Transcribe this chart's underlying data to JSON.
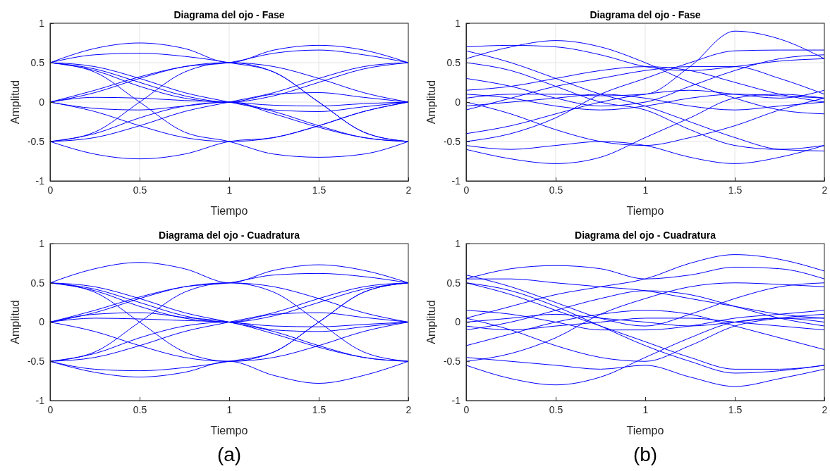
{
  "chart_data": [
    {
      "type": "line",
      "title": "Diagrama del ojo - Fase",
      "xlabel": "Tiempo",
      "ylabel": "Amplitud",
      "xlim": [
        0,
        2
      ],
      "ylim": [
        -1,
        1
      ],
      "xticks": [
        0,
        0.5,
        1,
        1.5,
        2
      ],
      "yticks": [
        -1,
        -0.5,
        0,
        0.5,
        1
      ],
      "grid": true,
      "series": [
        {
          "color": "#0000ff",
          "x": [
            0,
            0.25,
            0.5,
            0.75,
            1,
            1.25,
            1.5,
            1.75,
            2,
            0,
            0.25,
            0.5,
            0.75,
            1,
            1.25,
            1.5,
            1.75,
            2,
            0,
            0.25,
            0.5,
            0.75,
            1,
            1.25,
            1.5,
            1.75,
            2,
            0,
            0.25,
            0.5,
            0.75,
            1,
            1.25,
            1.5,
            1.75,
            2,
            0,
            0.25,
            0.5,
            0.75,
            1,
            1.25,
            1.5,
            1.75,
            2,
            0,
            0.25,
            0.5,
            0.75,
            1,
            1.25,
            1.5,
            1.75,
            2,
            0,
            0.25,
            0.5,
            0.75,
            1,
            1.25,
            1.5,
            1.75,
            2,
            0,
            0.25,
            0.5,
            0.75,
            1,
            1.25,
            1.5,
            1.75,
            2,
            0,
            0.25,
            0.5,
            0.75,
            1,
            1.25,
            1.5,
            1.75,
            2,
            0,
            0.25,
            0.5,
            0.75,
            1,
            1.25,
            1.5,
            1.75,
            2,
            0,
            0.25,
            0.5,
            0.75,
            1,
            1.25,
            1.5,
            1.75,
            2,
            0,
            0.25,
            0.5,
            0.75,
            1,
            1.25,
            1.5,
            1.75,
            2,
            0,
            0.25,
            0.5,
            0.75,
            1,
            1.25,
            1.5,
            1.75,
            2,
            0,
            0.25,
            0.5,
            0.75,
            1,
            1.25,
            1.5,
            1.75,
            2,
            0,
            0.25,
            0.5,
            0.75,
            1,
            1.25,
            1.5,
            1.75,
            2
          ],
          "values": [
            0.5,
            0.68,
            0.75,
            0.68,
            0.5,
            0.66,
            0.72,
            0.66,
            0.5,
            0.5,
            0.45,
            0.3,
            0.12,
            0,
            -0.12,
            -0.3,
            -0.45,
            -0.5,
            0,
            0.12,
            0.3,
            0.45,
            0.5,
            0.45,
            0.3,
            0.12,
            0,
            -0.5,
            -0.45,
            -0.3,
            -0.12,
            0,
            0.12,
            0.3,
            0.45,
            0.5,
            0,
            0.06,
            0.05,
            0.02,
            0,
            -0.04,
            -0.05,
            -0.02,
            0,
            -0.5,
            -0.66,
            -0.72,
            -0.66,
            -0.5,
            -0.45,
            -0.3,
            -0.12,
            0,
            0.5,
            0.38,
            0,
            -0.38,
            -0.5,
            -0.66,
            -0.7,
            -0.66,
            -0.5,
            -0.5,
            -0.38,
            0,
            0.38,
            0.5,
            0.38,
            0,
            -0.38,
            -0.5,
            0,
            -0.12,
            -0.3,
            -0.45,
            -0.5,
            -0.45,
            -0.3,
            -0.12,
            0,
            0.5,
            0.42,
            0.25,
            0.08,
            0,
            0.08,
            0.25,
            0.42,
            0.5,
            0,
            -0.08,
            -0.1,
            -0.05,
            0,
            -0.15,
            -0.32,
            -0.45,
            -0.5,
            0,
            0.15,
            0.32,
            0.45,
            0.5,
            0.62,
            0.66,
            0.6,
            0.5,
            0.5,
            0.4,
            0.2,
            0.05,
            0,
            0.1,
            0.12,
            0.06,
            0,
            -0.5,
            -0.4,
            -0.2,
            -0.05,
            0,
            -0.1,
            -0.12,
            -0.06,
            0,
            0.5,
            0.6,
            0.62,
            0.58,
            0.5,
            0.38,
            0,
            -0.38,
            -0.5
          ]
        }
      ]
    },
    {
      "type": "line",
      "title": "Diagrama del ojo - Fase",
      "xlabel": "Tiempo",
      "ylabel": "Amplitud",
      "xlim": [
        0,
        2
      ],
      "ylim": [
        -1,
        1
      ],
      "xticks": [
        0,
        0.5,
        1,
        1.5,
        2
      ],
      "yticks": [
        -1,
        -0.5,
        0,
        0.5,
        1
      ],
      "grid": true,
      "series": [
        {
          "color": "#0000ff",
          "x": [
            0,
            0.25,
            0.5,
            0.75,
            1,
            1.25,
            1.5,
            1.75,
            2,
            0,
            0.25,
            0.5,
            0.75,
            1,
            1.25,
            1.5,
            1.75,
            2,
            0,
            0.25,
            0.5,
            0.75,
            1,
            1.25,
            1.5,
            1.75,
            2,
            0,
            0.25,
            0.5,
            0.75,
            1,
            1.25,
            1.5,
            1.75,
            2,
            0,
            0.25,
            0.5,
            0.75,
            1,
            1.25,
            1.5,
            1.75,
            2,
            0,
            0.25,
            0.5,
            0.75,
            1,
            1.25,
            1.5,
            1.75,
            2,
            0,
            0.25,
            0.5,
            0.75,
            1,
            1.25,
            1.5,
            1.75,
            2,
            0,
            0.25,
            0.5,
            0.75,
            1,
            1.25,
            1.5,
            1.75,
            2,
            0,
            0.25,
            0.5,
            0.75,
            1,
            1.25,
            1.5,
            1.75,
            2,
            0,
            0.25,
            0.5,
            0.75,
            1,
            1.25,
            1.5,
            1.75,
            2,
            0,
            0.25,
            0.5,
            0.75,
            1,
            1.25,
            1.5,
            1.75,
            2,
            0,
            0.25,
            0.5,
            0.75,
            1,
            1.25,
            1.5,
            1.75,
            2,
            0,
            0.25,
            0.5,
            0.75,
            1,
            1.25,
            1.5,
            1.75,
            2,
            0,
            0.25,
            0.5,
            0.75,
            1,
            1.25,
            1.5,
            1.75,
            2,
            0,
            0.25,
            0.5,
            0.75,
            1,
            1.25,
            1.5,
            1.75,
            2
          ],
          "values": [
            0.7,
            0.72,
            0.7,
            0.6,
            0.45,
            0.4,
            0.45,
            0.52,
            0.55,
            0.55,
            0.7,
            0.78,
            0.7,
            0.5,
            0.25,
            0.05,
            -0.1,
            -0.15,
            0.05,
            0.1,
            0.1,
            0.08,
            0.1,
            0.45,
            0.9,
            0.8,
            0.55,
            -0.6,
            -0.72,
            -0.78,
            -0.7,
            -0.45,
            -0.2,
            0.05,
            0.1,
            0.05,
            0.1,
            0.05,
            -0.05,
            -0.1,
            -0.05,
            0.05,
            0.1,
            0.08,
            0.05,
            -0.05,
            0,
            0.05,
            0.1,
            0.05,
            -0.05,
            -0.1,
            -0.05,
            0,
            0.5,
            0.4,
            0.2,
            0,
            -0.1,
            -0.35,
            -0.55,
            -0.6,
            -0.55,
            -0.5,
            -0.4,
            -0.2,
            0.1,
            0.3,
            0.5,
            0.65,
            0.66,
            0.66,
            0.65,
            0.5,
            0.3,
            0.1,
            -0.05,
            -0.25,
            -0.45,
            -0.6,
            -0.62,
            -0.4,
            -0.3,
            -0.15,
            0,
            0.1,
            0.15,
            0.1,
            0.05,
            0.15,
            0.15,
            0.2,
            0.3,
            0.4,
            0.45,
            0.4,
            0.25,
            0.1,
            0,
            -0.55,
            -0.6,
            -0.55,
            -0.5,
            -0.55,
            -0.7,
            -0.78,
            -0.7,
            -0.55,
            0,
            -0.15,
            -0.35,
            -0.5,
            -0.55,
            -0.45,
            -0.3,
            -0.1,
            0.05,
            0.3,
            0.2,
            0.05,
            -0.05,
            0,
            0.2,
            0.4,
            0.55,
            0.6,
            -0.1,
            0.05,
            0.2,
            0.3,
            0.4,
            0.45,
            0.45,
            0.3,
            0.1
          ]
        }
      ]
    },
    {
      "type": "line",
      "title": "Diagrama del ojo - Cuadratura",
      "xlabel": "Tiempo",
      "ylabel": "Amplitud",
      "xlim": [
        0,
        2
      ],
      "ylim": [
        -1,
        1
      ],
      "xticks": [
        0,
        0.5,
        1,
        1.5,
        2
      ],
      "yticks": [
        -1,
        -0.5,
        0,
        0.5,
        1
      ],
      "annotations": [
        "(a)"
      ],
      "series": [
        {
          "color": "#0000ff",
          "x": [
            0,
            0.25,
            0.5,
            0.75,
            1,
            1.25,
            1.5,
            1.75,
            2,
            0,
            0.25,
            0.5,
            0.75,
            1,
            1.25,
            1.5,
            1.75,
            2,
            0,
            0.25,
            0.5,
            0.75,
            1,
            1.25,
            1.5,
            1.75,
            2,
            0,
            0.25,
            0.5,
            0.75,
            1,
            1.25,
            1.5,
            1.75,
            2,
            0,
            0.25,
            0.5,
            0.75,
            1,
            1.25,
            1.5,
            1.75,
            2,
            0,
            0.25,
            0.5,
            0.75,
            1,
            1.25,
            1.5,
            1.75,
            2,
            0,
            0.25,
            0.5,
            0.75,
            1,
            1.25,
            1.5,
            1.75,
            2,
            0,
            0.25,
            0.5,
            0.75,
            1,
            1.25,
            1.5,
            1.75,
            2,
            0,
            0.25,
            0.5,
            0.75,
            1,
            1.25,
            1.5,
            1.75,
            2,
            0,
            0.25,
            0.5,
            0.75,
            1,
            1.25,
            1.5,
            1.75,
            2,
            0,
            0.25,
            0.5,
            0.75,
            1,
            1.25,
            1.5,
            1.75,
            2,
            0,
            0.25,
            0.5,
            0.75,
            1,
            1.25,
            1.5,
            1.75,
            2,
            0,
            0.25,
            0.5,
            0.75,
            1,
            1.25,
            1.5,
            1.75,
            2,
            0,
            0.25,
            0.5,
            0.75,
            1,
            1.25,
            1.5,
            1.75,
            2,
            0,
            0.25,
            0.5,
            0.75,
            1,
            1.25,
            1.5,
            1.75,
            2
          ],
          "values": [
            0.5,
            0.68,
            0.76,
            0.68,
            0.5,
            0.66,
            0.73,
            0.66,
            0.5,
            0.5,
            0.45,
            0.3,
            0.12,
            0,
            -0.12,
            -0.3,
            -0.45,
            -0.5,
            0,
            0.12,
            0.3,
            0.45,
            0.5,
            0.45,
            0.3,
            0.12,
            0,
            -0.5,
            -0.45,
            -0.3,
            -0.12,
            0,
            0.12,
            0.3,
            0.45,
            0.5,
            0,
            0.05,
            0.04,
            0.02,
            0,
            -0.05,
            -0.06,
            -0.03,
            0,
            -0.5,
            -0.64,
            -0.7,
            -0.64,
            -0.5,
            -0.68,
            -0.78,
            -0.68,
            -0.5,
            0.5,
            0.38,
            0,
            -0.38,
            -0.5,
            -0.38,
            0,
            0.38,
            0.5,
            -0.5,
            -0.38,
            0,
            0.38,
            0.5,
            0.38,
            0,
            -0.38,
            -0.5,
            0,
            -0.12,
            -0.3,
            -0.45,
            -0.5,
            -0.45,
            -0.3,
            -0.12,
            0,
            0.5,
            0.42,
            0.25,
            0.08,
            0,
            0.08,
            0.25,
            0.42,
            0.5,
            0,
            0.1,
            0.12,
            0.06,
            0,
            -0.15,
            -0.32,
            -0.45,
            -0.5,
            -0.5,
            -0.6,
            -0.62,
            -0.58,
            -0.5,
            -0.38,
            0,
            0.38,
            0.5,
            0.5,
            0.4,
            0.2,
            0.05,
            0,
            0.1,
            0.12,
            0.06,
            0,
            -0.5,
            -0.4,
            -0.2,
            -0.05,
            0,
            -0.1,
            -0.12,
            -0.06,
            0,
            0,
            0.15,
            0.32,
            0.45,
            0.5,
            0.6,
            0.62,
            0.58,
            0.5
          ]
        }
      ]
    },
    {
      "type": "line",
      "title": "Diagrama del ojo - Cuadratura",
      "xlabel": "Tiempo",
      "ylabel": "Amplitud",
      "xlim": [
        0,
        2
      ],
      "ylim": [
        -1,
        1
      ],
      "xticks": [
        0,
        0.5,
        1,
        1.5,
        2
      ],
      "yticks": [
        -1,
        -0.5,
        0,
        0.5,
        1
      ],
      "annotations": [
        "(b)"
      ],
      "series": [
        {
          "color": "#0000ff",
          "x": [
            0,
            0.25,
            0.5,
            0.75,
            1,
            1.25,
            1.5,
            1.75,
            2,
            0,
            0.25,
            0.5,
            0.75,
            1,
            1.25,
            1.5,
            1.75,
            2,
            0,
            0.25,
            0.5,
            0.75,
            1,
            1.25,
            1.5,
            1.75,
            2,
            0,
            0.25,
            0.5,
            0.75,
            1,
            1.25,
            1.5,
            1.75,
            2,
            0,
            0.25,
            0.5,
            0.75,
            1,
            1.25,
            1.5,
            1.75,
            2,
            0,
            0.25,
            0.5,
            0.75,
            1,
            1.25,
            1.5,
            1.75,
            2,
            0,
            0.25,
            0.5,
            0.75,
            1,
            1.25,
            1.5,
            1.75,
            2,
            0,
            0.25,
            0.5,
            0.75,
            1,
            1.25,
            1.5,
            1.75,
            2,
            0,
            0.25,
            0.5,
            0.75,
            1,
            1.25,
            1.5,
            1.75,
            2,
            0,
            0.25,
            0.5,
            0.75,
            1,
            1.25,
            1.5,
            1.75,
            2,
            0,
            0.25,
            0.5,
            0.75,
            1,
            1.25,
            1.5,
            1.75,
            2,
            0,
            0.25,
            0.5,
            0.75,
            1,
            1.25,
            1.5,
            1.75,
            2,
            0,
            0.25,
            0.5,
            0.75,
            1,
            1.25,
            1.5,
            1.75,
            2,
            0,
            0.25,
            0.5,
            0.75,
            1,
            1.25,
            1.5,
            1.75,
            2,
            0,
            0.25,
            0.5,
            0.75,
            1,
            1.25,
            1.5,
            1.75,
            2
          ],
          "values": [
            0.55,
            0.68,
            0.72,
            0.68,
            0.55,
            0.6,
            0.7,
            0.68,
            0.55,
            0.05,
            0.2,
            0.35,
            0.45,
            0.55,
            0.75,
            0.86,
            0.8,
            0.65,
            -0.55,
            -0.72,
            -0.8,
            -0.7,
            -0.45,
            -0.2,
            0,
            0.05,
            0,
            0.5,
            0.35,
            0.15,
            -0.05,
            -0.25,
            -0.45,
            -0.6,
            -0.6,
            -0.55,
            0,
            0.05,
            0.1,
            0.05,
            0,
            -0.05,
            0,
            0.05,
            0.05,
            -0.05,
            -0.1,
            -0.05,
            0,
            0.05,
            0.05,
            0,
            -0.05,
            -0.1,
            0.5,
            0.4,
            0.2,
            -0.05,
            -0.3,
            -0.5,
            -0.65,
            -0.62,
            -0.55,
            -0.5,
            -0.4,
            -0.2,
            0.1,
            0.3,
            0.45,
            0.5,
            0.48,
            0.45,
            0.55,
            0.55,
            0.5,
            0.45,
            0.4,
            0.3,
            0.2,
            0.1,
            0.05,
            -0.3,
            -0.15,
            0,
            0.1,
            0.15,
            0.1,
            -0.05,
            -0.2,
            -0.35,
            0.15,
            0.1,
            0,
            -0.1,
            -0.1,
            -0.05,
            0.05,
            0.1,
            0.15,
            -0.45,
            -0.5,
            -0.55,
            -0.6,
            -0.55,
            -0.7,
            -0.82,
            -0.72,
            -0.6,
            0.05,
            -0.1,
            -0.3,
            -0.45,
            -0.5,
            -0.3,
            -0.05,
            0.05,
            0.1,
            0.6,
            0.45,
            0.25,
            0.05,
            -0.05,
            0.1,
            0.3,
            0.45,
            0.5,
            -0.1,
            0,
            0.15,
            0.3,
            0.4,
            0.35,
            0.2,
            0.05,
            -0.05
          ]
        }
      ]
    }
  ]
}
